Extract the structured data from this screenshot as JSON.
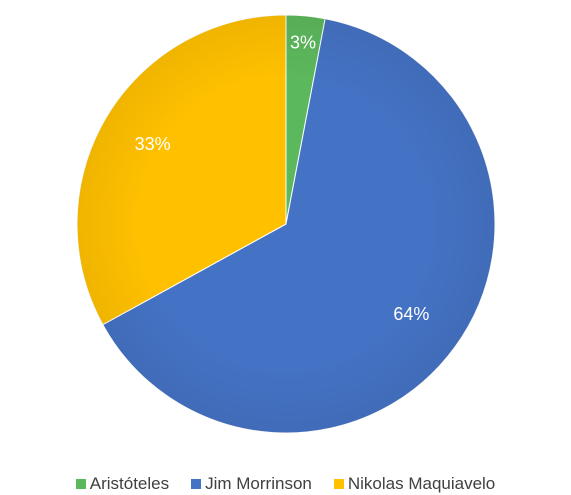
{
  "chart_data": {
    "type": "pie",
    "title": "",
    "categories": [
      "Aristóteles",
      "Jim Morrinson",
      "Nikolas Maquiavelo"
    ],
    "values": [
      3,
      64,
      33
    ],
    "labels": [
      "3%",
      "64%",
      "33%"
    ],
    "colors": [
      "#5cb85c",
      "#4472c4",
      "#ffc000"
    ],
    "start_angle_deg": 0,
    "direction": "clockwise",
    "legend": "bottom"
  }
}
